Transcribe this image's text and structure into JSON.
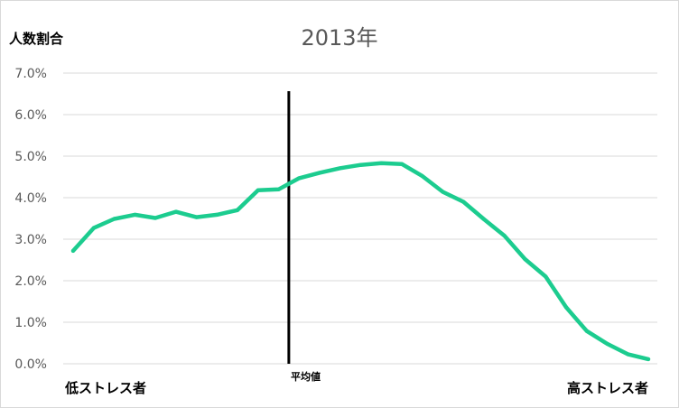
{
  "chart_data": {
    "type": "line",
    "title": "2013年",
    "ylabel": "人数割合",
    "xlabel_left": "低ストレス者",
    "xlabel_right": "高ストレス者",
    "mean_label": "平均値",
    "mean_index": 10.5,
    "ylim": [
      0,
      7
    ],
    "yticks": [
      "0.0%",
      "1.0%",
      "2.0%",
      "3.0%",
      "4.0%",
      "5.0%",
      "6.0%",
      "7.0%"
    ],
    "grid": true,
    "series": [
      {
        "color": "#1ccc8f",
        "values": [
          2.72,
          3.27,
          3.49,
          3.59,
          3.51,
          3.66,
          3.53,
          3.59,
          3.7,
          4.18,
          4.2,
          4.47,
          4.6,
          4.71,
          4.79,
          4.83,
          4.81,
          4.52,
          4.14,
          3.9,
          3.48,
          3.08,
          2.52,
          2.1,
          1.36,
          0.79,
          0.48,
          0.23,
          0.11
        ]
      }
    ]
  }
}
